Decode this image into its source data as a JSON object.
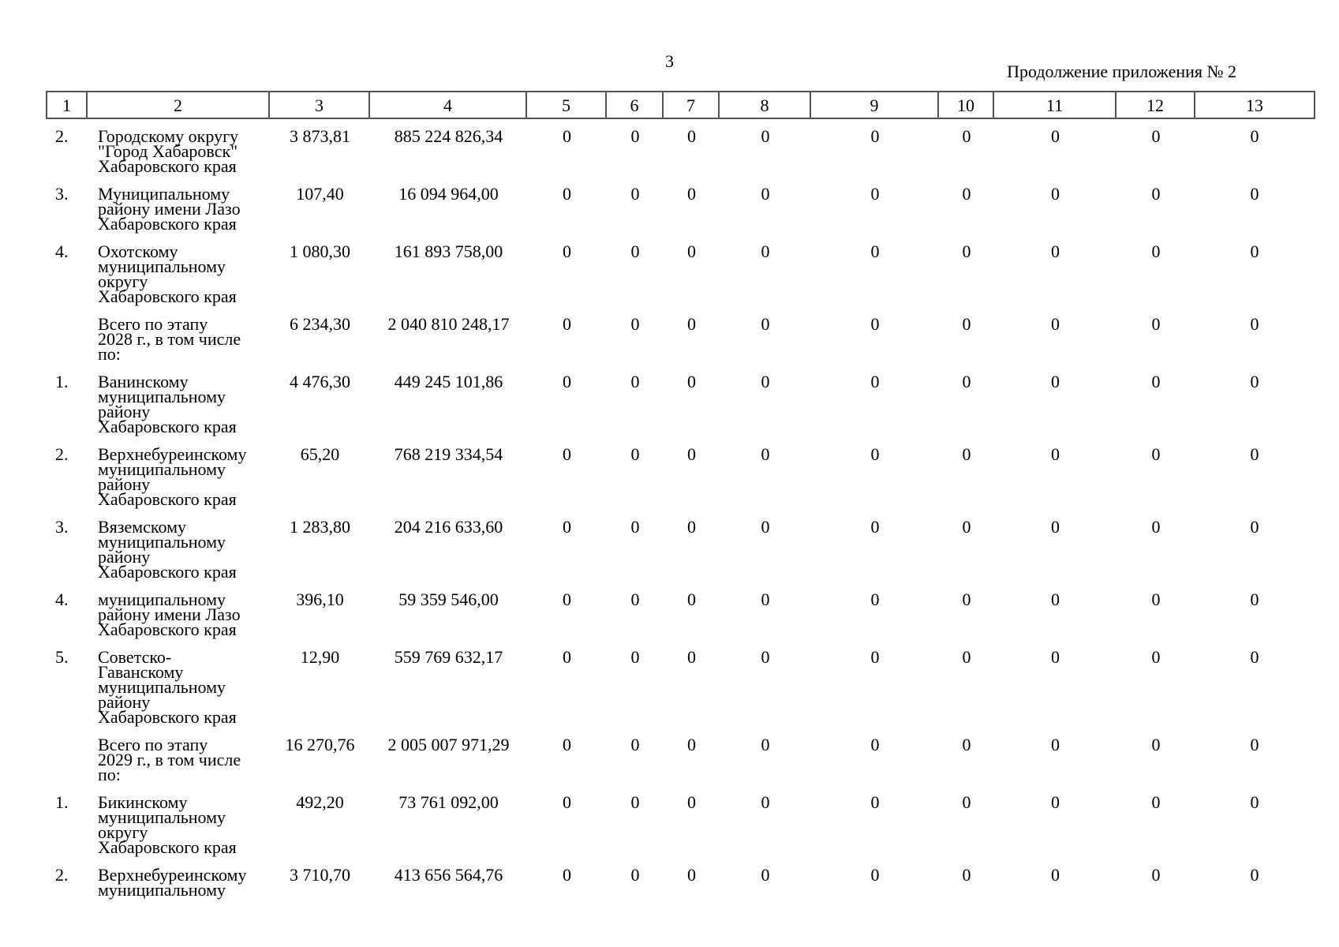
{
  "page": {
    "number": "3",
    "continuation": "Продолжение приложения № 2"
  },
  "table": {
    "column_headers": [
      "1",
      "2",
      "3",
      "4",
      "5",
      "6",
      "7",
      "8",
      "9",
      "10",
      "11",
      "12",
      "13"
    ],
    "rows": [
      {
        "num": "2.",
        "name": "Городскому округу\n\"Город Хабаровск\"\nХабаровского края",
        "values": [
          "3 873,81",
          "885 224 826,34",
          "0",
          "0",
          "0",
          "0",
          "0",
          "0",
          "0",
          "0",
          "0"
        ]
      },
      {
        "num": "3.",
        "name": "Муниципальному\nрайону имени Лазо\nХабаровского края",
        "values": [
          "107,40",
          "16 094 964,00",
          "0",
          "0",
          "0",
          "0",
          "0",
          "0",
          "0",
          "0",
          "0"
        ]
      },
      {
        "num": "4.",
        "name": "Охотскому\nмуниципальному\nокругу\nХабаровского края",
        "values": [
          "1 080,30",
          "161 893 758,00",
          "0",
          "0",
          "0",
          "0",
          "0",
          "0",
          "0",
          "0",
          "0"
        ]
      },
      {
        "num": "",
        "name": "Всего по этапу\n2028 г., в том числе\nпо:",
        "values": [
          "6 234,30",
          "2 040 810 248,17",
          "0",
          "0",
          "0",
          "0",
          "0",
          "0",
          "0",
          "0",
          "0"
        ]
      },
      {
        "num": "1.",
        "name": "Ванинскому\nмуниципальному\nрайону\nХабаровского края",
        "values": [
          "4 476,30",
          "449 245 101,86",
          "0",
          "0",
          "0",
          "0",
          "0",
          "0",
          "0",
          "0",
          "0"
        ]
      },
      {
        "num": "2.",
        "name": "Верхнебуреинскому\nмуниципальному\nрайону\nХабаровского края",
        "values": [
          "65,20",
          "768 219 334,54",
          "0",
          "0",
          "0",
          "0",
          "0",
          "0",
          "0",
          "0",
          "0"
        ]
      },
      {
        "num": "3.",
        "name": "Вяземскому\nмуниципальному\nрайону\nХабаровского края",
        "values": [
          "1 283,80",
          "204 216 633,60",
          "0",
          "0",
          "0",
          "0",
          "0",
          "0",
          "0",
          "0",
          "0"
        ]
      },
      {
        "num": "4.",
        "name": "муниципальному\nрайону имени Лазо\nХабаровского края",
        "values": [
          "396,10",
          "59 359 546,00",
          "0",
          "0",
          "0",
          "0",
          "0",
          "0",
          "0",
          "0",
          "0"
        ]
      },
      {
        "num": "5.",
        "name": "Советско-\nГаванскому\nмуниципальному\nрайону\nХабаровского края",
        "values": [
          "12,90",
          "559 769 632,17",
          "0",
          "0",
          "0",
          "0",
          "0",
          "0",
          "0",
          "0",
          "0"
        ]
      },
      {
        "num": "",
        "name": "Всего по этапу\n2029 г., в том числе\nпо:",
        "values": [
          "16 270,76",
          "2 005 007 971,29",
          "0",
          "0",
          "0",
          "0",
          "0",
          "0",
          "0",
          "0",
          "0"
        ]
      },
      {
        "num": "1.",
        "name": "Бикинскому\nмуниципальному\nокругу\nХабаровского края",
        "values": [
          "492,20",
          "73 761 092,00",
          "0",
          "0",
          "0",
          "0",
          "0",
          "0",
          "0",
          "0",
          "0"
        ]
      },
      {
        "num": "2.",
        "name": "Верхнебуреинскому\nмуниципальному",
        "values": [
          "3 710,70",
          "413 656 564,76",
          "0",
          "0",
          "0",
          "0",
          "0",
          "0",
          "0",
          "0",
          "0"
        ]
      }
    ]
  }
}
